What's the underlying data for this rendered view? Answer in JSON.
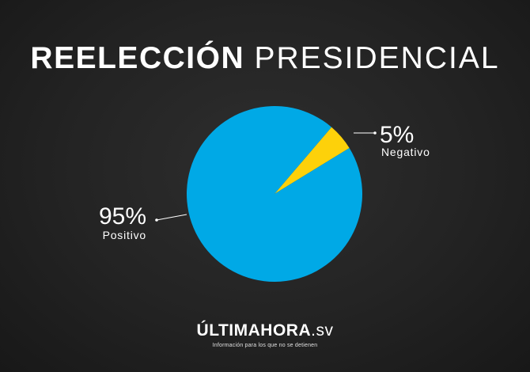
{
  "title": {
    "bold": "REELECCIÓN",
    "light": "PRESIDENCIAL"
  },
  "chart_data": {
    "type": "pie",
    "title": "REELECCIÓN PRESIDENCIAL",
    "slices": [
      {
        "label": "Positivo",
        "value": 95,
        "display": "95%",
        "color": "#00a9e6"
      },
      {
        "label": "Negativo",
        "value": 5,
        "display": "5%",
        "color": "#fdd10a"
      }
    ]
  },
  "brand": {
    "name": "ÚLTIMAHORA",
    "suffix": ".sv",
    "tagline": "Información para los que no se detienen"
  }
}
